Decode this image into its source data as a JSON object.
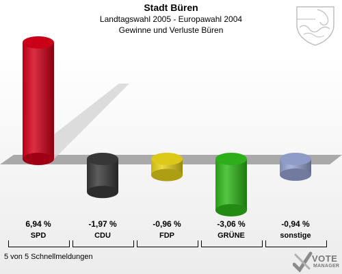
{
  "header": {
    "title": "Stadt Büren",
    "subtitle": "Landtagswahl 2005 - Europawahl 2004",
    "subtitle2": "Gewinne und Verluste Büren"
  },
  "footer": {
    "reports": "5 von 5 Schnellmeldungen"
  },
  "logo": {
    "line1": "VOTE",
    "line2": "MANAGER"
  },
  "chart_data": {
    "type": "bar",
    "title": "Stadt Büren",
    "subtitle": "Landtagswahl 2005 - Europawahl 2004 · Gewinne und Verluste Büren",
    "categories": [
      "SPD",
      "CDU",
      "FDP",
      "GRÜNE",
      "sonstige"
    ],
    "values": [
      6.94,
      -1.97,
      -0.96,
      -3.06,
      -0.94
    ],
    "value_labels": [
      "6,94 %",
      "-1,97 %",
      "-0,96 %",
      "-3,06 %",
      "-0,94 %"
    ],
    "colors": [
      "#d40019",
      "#3a3a3a",
      "#e8d21a",
      "#2fb81a",
      "#97a4d3"
    ],
    "unit": "%",
    "grid": false,
    "legend": "none"
  }
}
